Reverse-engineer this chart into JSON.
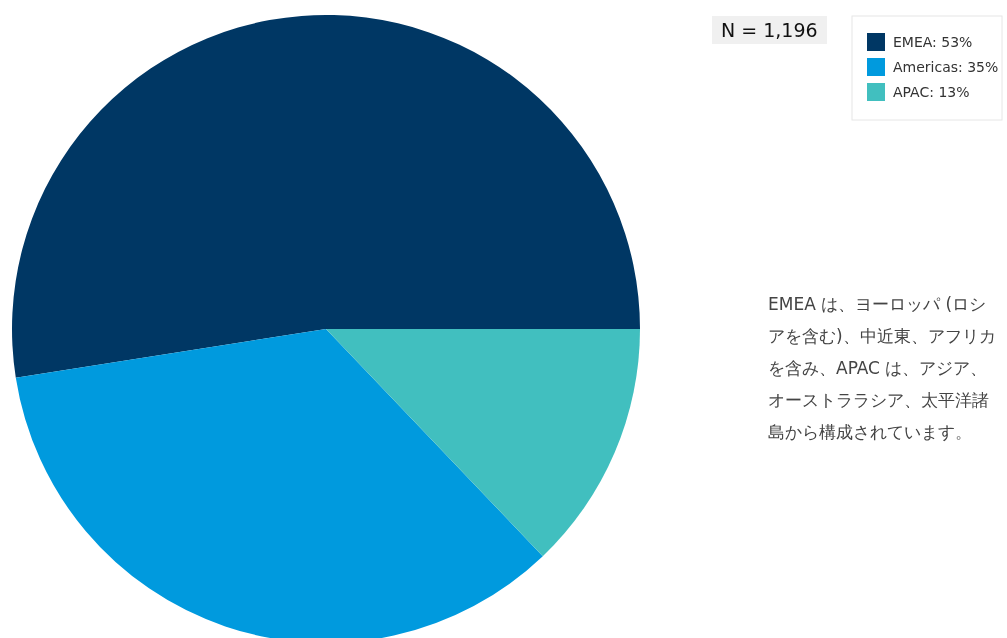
{
  "chart_data": {
    "type": "pie",
    "categories": [
      "EMEA: 53%",
      "Americas: 35%",
      "APAC: 13%"
    ],
    "values": [
      53,
      35,
      13
    ],
    "colors": [
      "#003764",
      "#009ade",
      "#41bfbf"
    ],
    "legend": "top right",
    "annotations": [
      "N = 1,196",
      "EMEA は、ヨーロッパ (ロシアを含む)、中近東、アフリカを含み、APAC は、アジア、オーストララシア、太平洋諸島から構成されています。"
    ]
  }
}
